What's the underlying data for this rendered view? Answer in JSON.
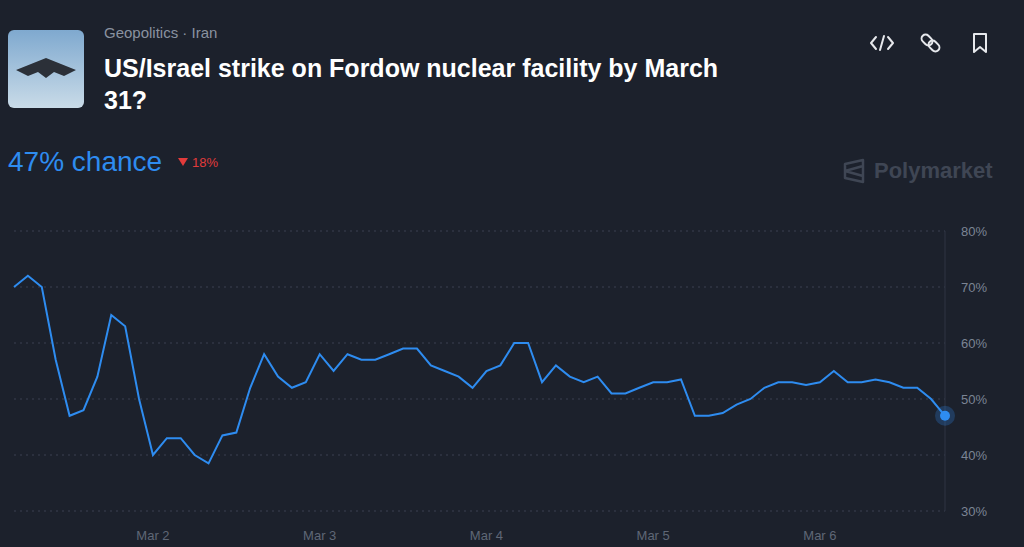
{
  "chart_data": {
    "type": "line",
    "title": "US/Israel strike on Fordow nuclear facility by March 31?",
    "subtitle": "Geopolitics · Iran",
    "annotations": {
      "chance": "47% chance",
      "change": "18%",
      "source": "Polymarket"
    },
    "categories": [
      null,
      null,
      null,
      null,
      null,
      null,
      null,
      null,
      null,
      null,
      "Mar 2",
      null,
      null,
      null,
      null,
      null,
      null,
      null,
      null,
      null,
      null,
      null,
      "Mar 3",
      null,
      null,
      null,
      null,
      null,
      null,
      null,
      null,
      null,
      null,
      null,
      "Mar 4",
      null,
      null,
      null,
      null,
      null,
      null,
      null,
      null,
      null,
      null,
      null,
      "Mar 5",
      null,
      null,
      null,
      null,
      null,
      null,
      null,
      null,
      null,
      null,
      null,
      "Mar 6",
      null,
      null,
      null,
      null,
      null,
      null,
      null,
      null,
      null
    ],
    "values": [
      70,
      72,
      70,
      57,
      47,
      48,
      54,
      65,
      63,
      50,
      40,
      43,
      43,
      40,
      38.5,
      43.5,
      44,
      52,
      58,
      54,
      52,
      53,
      58,
      55,
      58,
      57,
      57,
      58,
      59,
      59,
      56,
      55,
      54,
      52,
      55,
      56,
      60,
      60,
      53,
      56,
      54,
      53,
      54,
      51,
      51,
      52,
      53,
      53,
      53.5,
      47,
      47,
      47.5,
      49,
      50,
      52,
      53,
      53,
      52.5,
      53,
      55,
      53,
      53,
      53.5,
      53,
      52,
      52,
      50,
      47
    ],
    "color": "#2e8cf0",
    "ylim": [
      30,
      80
    ],
    "yticks": [
      {
        "value": 30,
        "label": "30%"
      },
      {
        "value": 40,
        "label": "40%"
      },
      {
        "value": 50,
        "label": "50%"
      },
      {
        "value": 60,
        "label": "60%"
      },
      {
        "value": 70,
        "label": "70%"
      },
      {
        "value": 80,
        "label": "80%"
      }
    ],
    "grid": true
  }
}
